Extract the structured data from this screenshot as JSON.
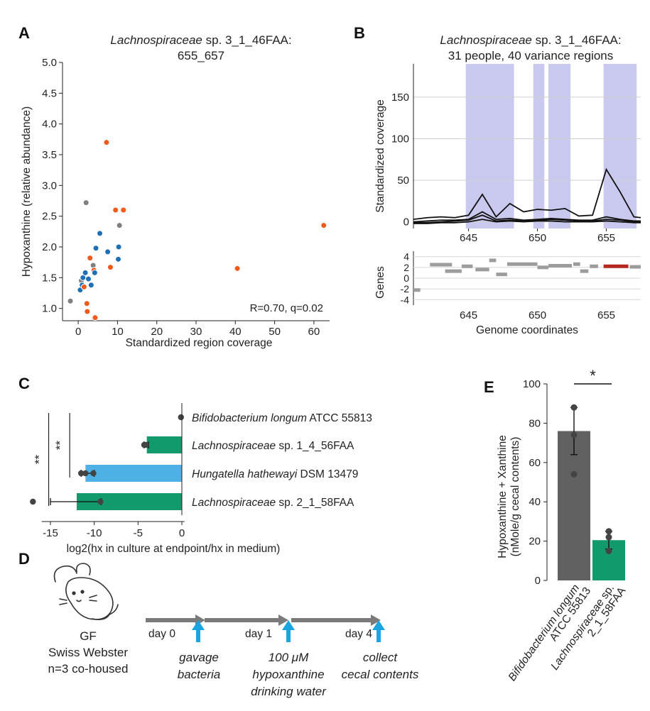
{
  "colors": {
    "orange": "#f05a1a",
    "blue": "#1f6fb5",
    "gray": "#7f7f7f",
    "variance": "#c9c8ee",
    "green": "#139a6c",
    "lightblue": "#4fb0e6",
    "darkbar": "#616161",
    "arrow": "#1aa4e0",
    "highlight_gene": "#b5281e"
  },
  "panels": {
    "A": {
      "letter": "A"
    },
    "B": {
      "letter": "B"
    },
    "C": {
      "letter": "C"
    },
    "D": {
      "letter": "D"
    },
    "E": {
      "letter": "E"
    }
  },
  "chart_data": [
    {
      "id": "A",
      "type": "scatter",
      "title_italic": "Lachnospiraceae",
      "title_rest": " sp. 3_1_46FAA:",
      "title_line2": "655_657",
      "xlabel": "Standardized region coverage",
      "ylabel": "Hypoxanthine (relative abundance)",
      "xlim": [
        -4,
        64
      ],
      "ylim": [
        0.8,
        5.0
      ],
      "xticks": [
        0,
        10,
        20,
        30,
        40,
        50,
        60
      ],
      "yticks": [
        1.0,
        1.5,
        2.0,
        2.5,
        3.0,
        3.5,
        4.0,
        4.5,
        5.0
      ],
      "annotation": "R=0.70, q=0.02",
      "points": [
        {
          "x": -2,
          "y": 1.12,
          "c": "gray"
        },
        {
          "x": 0.5,
          "y": 1.3,
          "c": "blue"
        },
        {
          "x": 0.8,
          "y": 1.45,
          "c": "gray"
        },
        {
          "x": 1.0,
          "y": 1.38,
          "c": "blue"
        },
        {
          "x": 1.2,
          "y": 1.5,
          "c": "blue"
        },
        {
          "x": 1.5,
          "y": 1.35,
          "c": "orange"
        },
        {
          "x": 1.8,
          "y": 1.58,
          "c": "blue"
        },
        {
          "x": 2.0,
          "y": 2.72,
          "c": "gray"
        },
        {
          "x": 2.2,
          "y": 1.08,
          "c": "orange"
        },
        {
          "x": 2.3,
          "y": 0.95,
          "c": "orange"
        },
        {
          "x": 2.6,
          "y": 1.48,
          "c": "blue"
        },
        {
          "x": 3.0,
          "y": 1.82,
          "c": "orange"
        },
        {
          "x": 3.3,
          "y": 1.38,
          "c": "blue"
        },
        {
          "x": 3.8,
          "y": 1.7,
          "c": "gray"
        },
        {
          "x": 4.0,
          "y": 1.62,
          "c": "orange"
        },
        {
          "x": 4.2,
          "y": 1.58,
          "c": "blue"
        },
        {
          "x": 4.5,
          "y": 1.98,
          "c": "blue"
        },
        {
          "x": 4.3,
          "y": 0.85,
          "c": "orange"
        },
        {
          "x": 5.5,
          "y": 2.22,
          "c": "blue"
        },
        {
          "x": 7.2,
          "y": 3.7,
          "c": "orange"
        },
        {
          "x": 7.5,
          "y": 1.92,
          "c": "blue"
        },
        {
          "x": 8.2,
          "y": 1.67,
          "c": "orange"
        },
        {
          "x": 9.5,
          "y": 2.6,
          "c": "orange"
        },
        {
          "x": 10.2,
          "y": 1.8,
          "c": "blue"
        },
        {
          "x": 10.3,
          "y": 2.0,
          "c": "blue"
        },
        {
          "x": 10.5,
          "y": 2.35,
          "c": "gray"
        },
        {
          "x": 11.5,
          "y": 2.6,
          "c": "orange"
        },
        {
          "x": 40.5,
          "y": 1.65,
          "c": "orange"
        },
        {
          "x": 62.5,
          "y": 2.35,
          "c": "orange"
        }
      ]
    },
    {
      "id": "B",
      "type": "line",
      "title_italic": "Lachnospiraceae",
      "title_rest": " sp. 3_1_46FAA:",
      "title_line2": "31 people, 40 variance regions",
      "ylabel": "Standardized coverage",
      "xlabel": "Genome coordinates",
      "xlim": [
        641,
        657.5
      ],
      "ylim": [
        -8,
        190
      ],
      "yticks": [
        0,
        50,
        100,
        150
      ],
      "xticks": [
        645,
        650,
        655
      ],
      "variance_regions": [
        [
          644.8,
          648.3
        ],
        [
          649.7,
          650.5
        ],
        [
          650.8,
          652.4
        ],
        [
          654.8,
          657.2
        ]
      ],
      "x": [
        641,
        642,
        643,
        644,
        645,
        646,
        647,
        648,
        649,
        650,
        651,
        652,
        653,
        654,
        655,
        656,
        657,
        657.5
      ],
      "series": [
        {
          "name": "s1",
          "values": [
            3,
            5,
            6,
            5,
            8,
            33,
            6,
            22,
            12,
            15,
            14,
            16,
            7,
            8,
            63,
            36,
            6,
            5
          ]
        },
        {
          "name": "s2",
          "values": [
            0,
            1,
            2,
            2,
            3,
            12,
            3,
            4,
            2,
            3,
            4,
            3,
            2,
            2,
            6,
            3,
            1,
            1
          ]
        },
        {
          "name": "s3",
          "values": [
            -1,
            -1,
            0,
            1,
            2,
            8,
            1,
            2,
            1,
            2,
            3,
            2,
            1,
            1,
            3,
            2,
            0,
            0
          ]
        },
        {
          "name": "s4",
          "values": [
            -2,
            -2,
            -1,
            -1,
            0,
            3,
            0,
            1,
            0,
            1,
            1,
            0,
            0,
            0,
            1,
            0,
            -1,
            -1
          ]
        }
      ],
      "genes": {
        "ylabel": "Genes",
        "yticks": [
          4,
          2,
          0,
          -2,
          -4
        ],
        "ylim": [
          -5,
          5
        ],
        "segments": [
          {
            "x1": 641.0,
            "x2": 641.5,
            "y": -2.2,
            "hl": false
          },
          {
            "x1": 642.2,
            "x2": 643.8,
            "y": 2.5,
            "hl": false
          },
          {
            "x1": 643.3,
            "x2": 644.5,
            "y": 1.3,
            "hl": false
          },
          {
            "x1": 644.5,
            "x2": 645.3,
            "y": 2.2,
            "hl": false
          },
          {
            "x1": 645.5,
            "x2": 646.5,
            "y": 1.6,
            "hl": false
          },
          {
            "x1": 646.5,
            "x2": 647.0,
            "y": 3.3,
            "hl": false
          },
          {
            "x1": 647.0,
            "x2": 647.8,
            "y": 0.7,
            "hl": false
          },
          {
            "x1": 647.8,
            "x2": 650.0,
            "y": 2.6,
            "hl": false
          },
          {
            "x1": 650.0,
            "x2": 650.8,
            "y": 2.0,
            "hl": false
          },
          {
            "x1": 650.8,
            "x2": 652.5,
            "y": 2.3,
            "hl": false
          },
          {
            "x1": 652.6,
            "x2": 653.1,
            "y": 2.6,
            "hl": false
          },
          {
            "x1": 653.1,
            "x2": 653.7,
            "y": 1.3,
            "hl": false
          },
          {
            "x1": 653.8,
            "x2": 654.4,
            "y": 2.2,
            "hl": false
          },
          {
            "x1": 654.8,
            "x2": 656.6,
            "y": 2.2,
            "hl": true
          },
          {
            "x1": 656.7,
            "x2": 657.5,
            "y": 2.1,
            "hl": false
          }
        ]
      }
    },
    {
      "id": "C",
      "type": "bar",
      "orientation": "horizontal",
      "xlabel": "log2(hx in culture at endpoint/hx in medium)",
      "xlim": [
        -17.5,
        0.5
      ],
      "xticks": [
        -15,
        -10,
        -5,
        0
      ],
      "categories": [
        {
          "italic": "Bifidobacterium longum",
          "rest": " ATCC 55813",
          "value": 0,
          "err_lo": 0,
          "err_hi": 0,
          "c": "green",
          "points": [
            -0.1
          ]
        },
        {
          "italic": "Lachnospiraceae",
          "rest": " sp. 1_4_56FAA",
          "value": -4.0,
          "err_lo": -4.3,
          "err_hi": -3.8,
          "c": "green",
          "points": [
            -4.1,
            -4.3
          ]
        },
        {
          "italic": "Hungatella hathewayi",
          "rest": " DSM 13479",
          "value": -11.0,
          "err_lo": -11.5,
          "err_hi": -10.0,
          "c": "lightblue",
          "points": [
            -11.5,
            -11.0,
            -10.1
          ]
        },
        {
          "italic": "Lachnospiraceae",
          "rest": " sp. 2_1_58FAA",
          "value": -12.0,
          "err_lo": -15.0,
          "err_hi": -9.2,
          "c": "green",
          "points": [
            -17.0,
            -9.3
          ]
        }
      ],
      "significance": [
        {
          "label": "**",
          "x": -15.2,
          "from": 0,
          "to": 3
        },
        {
          "label": "**",
          "x": -12.8,
          "from": 0,
          "to": 2
        }
      ]
    },
    {
      "id": "E",
      "type": "bar",
      "ylabel_line1": "Hypoxanthine + Xanthine",
      "ylabel_line2": "(nMole/g cecal contents)",
      "ylim": [
        0,
        100
      ],
      "yticks": [
        0,
        20,
        40,
        60,
        80,
        100
      ],
      "categories": [
        {
          "italic": "Bifidobacterium longum",
          "line2": "ATCC 55813",
          "value": 76,
          "err": 12,
          "c": "darkbar",
          "points": [
            88,
            74,
            54
          ]
        },
        {
          "italic": "Lachnospiraceae",
          "italic_tail": " sp.",
          "line2": "2_1_58FAA",
          "value": 20.5,
          "err": 4.5,
          "c": "green",
          "points": [
            25,
            22,
            15
          ]
        }
      ],
      "significance": "*"
    }
  ],
  "diagram_d": {
    "gf": "GF",
    "strain": "Swiss Webster",
    "n": "n=3 co-housed",
    "days": [
      "day 0",
      "day 1",
      "day 4"
    ],
    "steps": [
      {
        "line1": "gavage",
        "line2": "bacteria"
      },
      {
        "line1": "100 μM",
        "line2": "hypoxanthine",
        "line3": "drinking water"
      },
      {
        "line1": "collect",
        "line2": "cecal contents"
      }
    ]
  }
}
